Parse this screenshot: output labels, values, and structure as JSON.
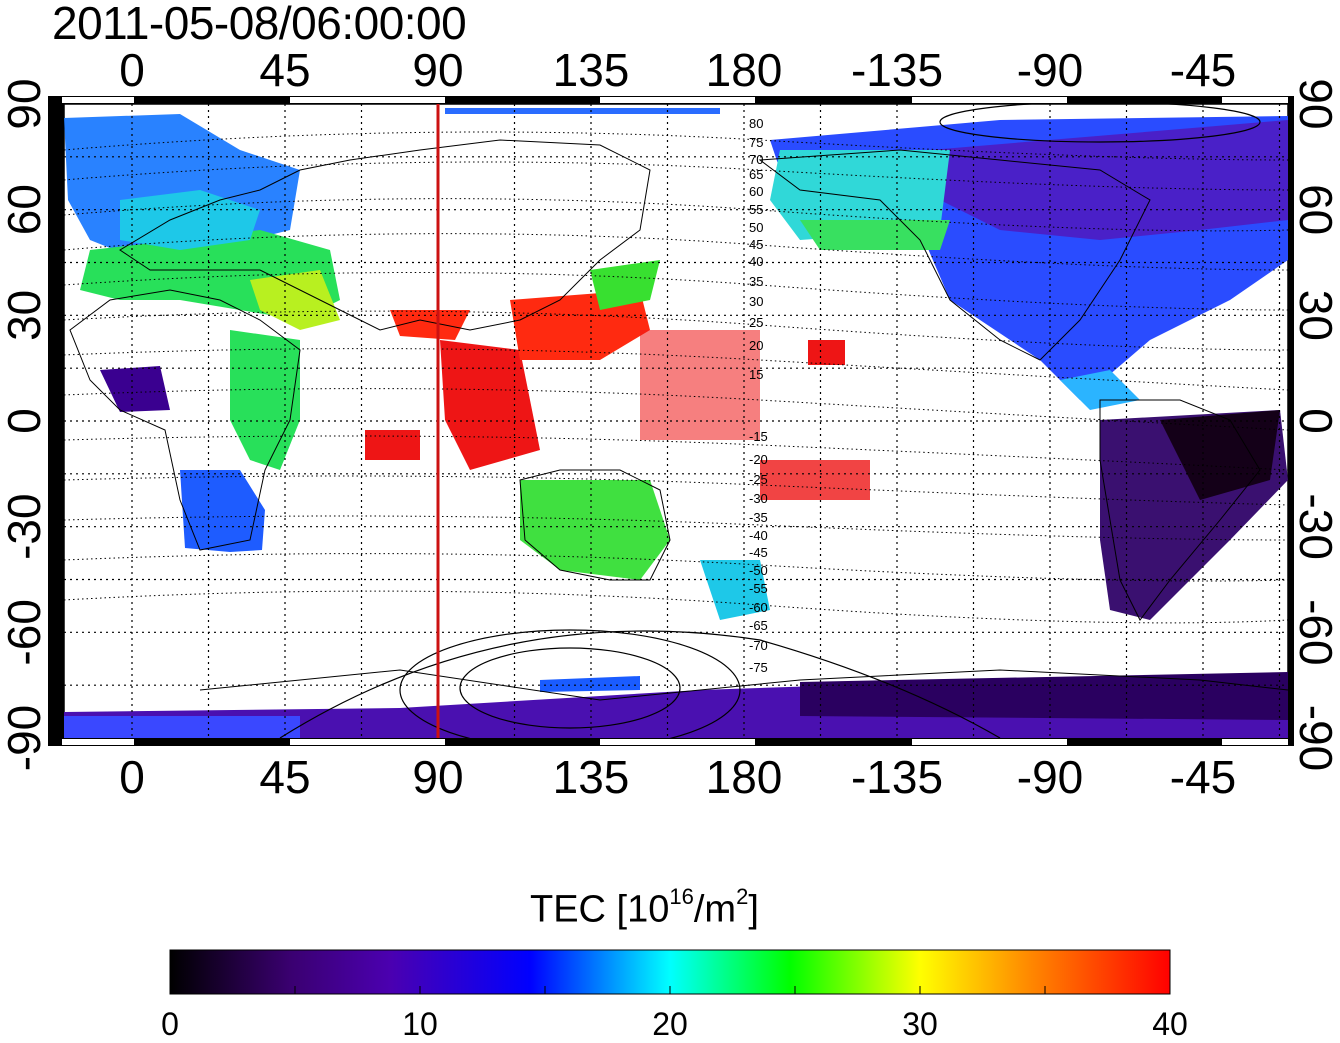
{
  "title": "2011-05-08/06:00:00",
  "map": {
    "lon_ticks": [
      "0",
      "45",
      "90",
      "135",
      "180",
      "-135",
      "-90",
      "-45"
    ],
    "lat_ticks": [
      "90",
      "60",
      "30",
      "0",
      "-30",
      "-60",
      "-90"
    ],
    "meridian_marker_longitude": 90,
    "marker_color": "#cc1111",
    "contour_labels_north": [
      "80",
      "75",
      "70",
      "65",
      "60",
      "55",
      "50",
      "45",
      "40",
      "35",
      "30",
      "25",
      "20",
      "15"
    ],
    "contour_labels_south": [
      "-15",
      "-20",
      "-25",
      "-30",
      "-35",
      "-40",
      "-45",
      "-50",
      "-55",
      "-60",
      "-65",
      "-70",
      "-75"
    ],
    "grid": "dotted"
  },
  "colorbar": {
    "title_main": "TEC  [10",
    "title_exp": "16",
    "title_unit": "/m",
    "title_unit_exp": "2",
    "title_close": "]",
    "ticks": [
      "0",
      "10",
      "20",
      "30",
      "40"
    ],
    "range": [
      0,
      40
    ],
    "colors": [
      "#000000",
      "#3a0070",
      "#4b00b0",
      "#0000ff",
      "#00ffff",
      "#00ff00",
      "#ffff00",
      "#ff8800",
      "#ff0000"
    ]
  }
}
